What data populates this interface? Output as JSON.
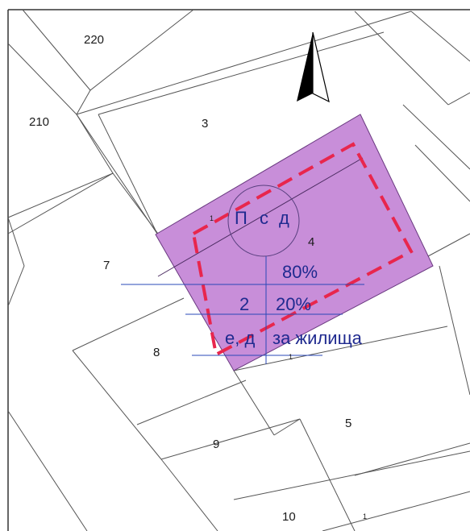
{
  "parcels": {
    "p220": "220",
    "p210": "210",
    "p3": "3",
    "p4": "4",
    "p7": "7",
    "p8": "8",
    "p9": "9",
    "p5": "5",
    "p10": "10"
  },
  "zone_table": {
    "header": [
      "П",
      "с",
      "д"
    ],
    "density": "80%",
    "height_val": "2",
    "green_pct": "20%",
    "build_mode": "е, д",
    "purpose": "за жилища"
  },
  "small_marks": [
    "1",
    "1",
    "1"
  ],
  "colors": {
    "zone_fill": "#c88ed9",
    "zone_stroke": "#6a3a80",
    "boundary_dash": "#e8264d",
    "table_lines": "#2a48b8",
    "text_blue": "#1f2a8f",
    "north_arrow": "#000000"
  },
  "icons": [
    "north-arrow-icon"
  ]
}
